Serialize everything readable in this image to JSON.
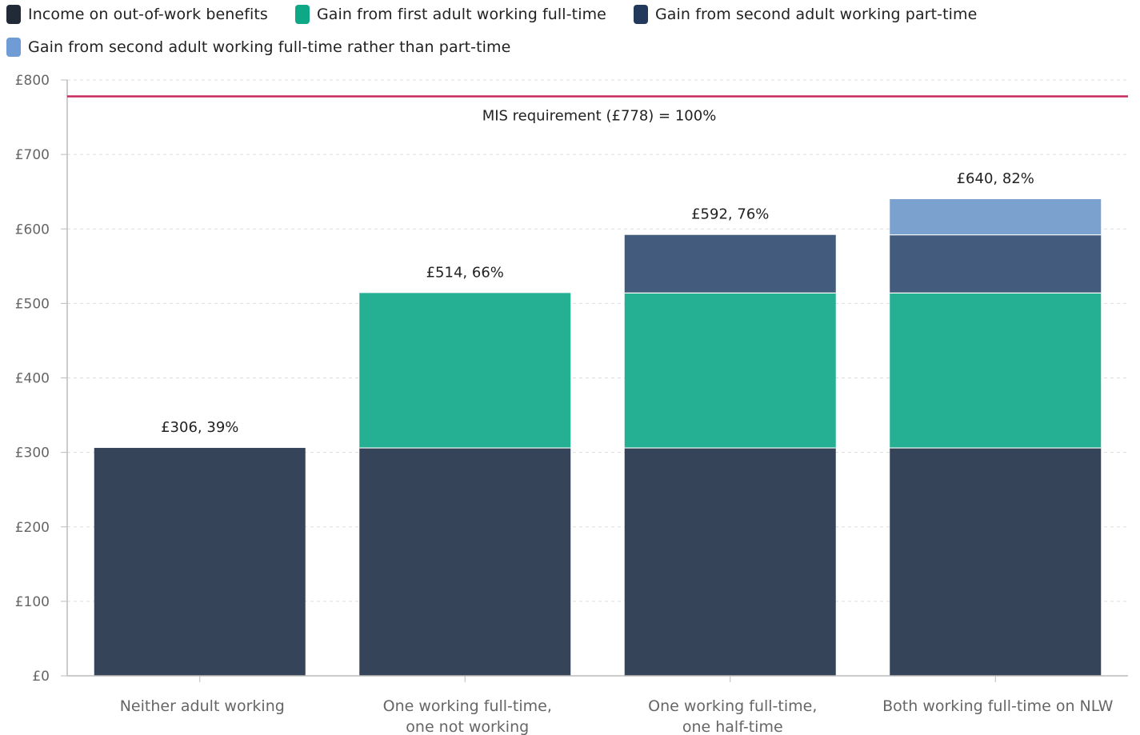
{
  "legend": [
    {
      "label": "Income on out-of-work benefits",
      "color": "#212a37"
    },
    {
      "label": "Gain from first adult working full-time",
      "color": "#0fa887"
    },
    {
      "label": "Gain from second adult working part-time",
      "color": "#23395b"
    },
    {
      "label": "Gain from second adult working full-time rather than part-time",
      "color": "#6f9cd4"
    }
  ],
  "chart_data": {
    "type": "bar",
    "stacked": true,
    "categories": [
      [
        "Neither adult working"
      ],
      [
        "One working full-time,",
        "one not working"
      ],
      [
        "One working full-time,",
        "one half-time"
      ],
      [
        "Both working full-time on NLW"
      ]
    ],
    "series": [
      {
        "name": "Income on out-of-work benefits",
        "color": "#354458",
        "values": [
          306,
          306,
          306,
          306
        ]
      },
      {
        "name": "Gain from first adult working full-time",
        "color": "#25b093",
        "values": [
          0,
          208,
          208,
          208
        ]
      },
      {
        "name": "Gain from second adult working part-time",
        "color": "#435b7d",
        "values": [
          0,
          0,
          78,
          78
        ]
      },
      {
        "name": "Gain from second adult working full-time rather than part-time",
        "color": "#7ba1cf",
        "values": [
          0,
          0,
          0,
          48
        ]
      }
    ],
    "totals": [
      306,
      514,
      592,
      640
    ],
    "data_labels": [
      "£306, 39%",
      "£514, 66%",
      "£592, 76%",
      "£640, 82%"
    ],
    "reference_line": {
      "value": 778,
      "label": "MIS requirement (£778) = 100%",
      "color": "#c8285f"
    },
    "ylim": [
      0,
      800
    ],
    "yticks": [
      0,
      100,
      200,
      300,
      400,
      500,
      600,
      700,
      800
    ],
    "ytick_labels": [
      "£0",
      "£100",
      "£200",
      "£300",
      "£400",
      "£500",
      "£600",
      "£700",
      "£800"
    ],
    "grid": true,
    "legend_position": "top-left"
  }
}
